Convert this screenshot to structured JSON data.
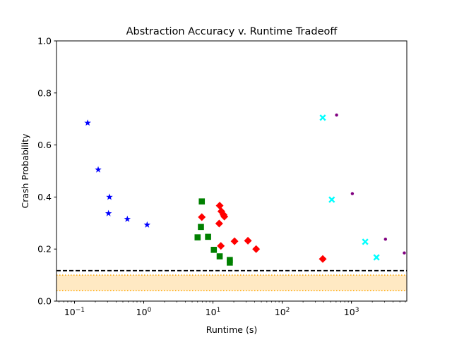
{
  "chart_data": {
    "type": "scatter",
    "title": "Abstraction Accuracy v. Runtime Tradeoff",
    "xlabel": "Runtime (s)",
    "ylabel": "Crash Probability",
    "xscale": "log",
    "xlim": [
      0.055,
      6300
    ],
    "ylim": [
      0.0,
      1.0
    ],
    "grid": false,
    "y_ticks": [
      {
        "value": 0.0,
        "label": "0.0"
      },
      {
        "value": 0.2,
        "label": "0.2"
      },
      {
        "value": 0.4,
        "label": "0.4"
      },
      {
        "value": 0.6,
        "label": "0.6"
      },
      {
        "value": 0.8,
        "label": "0.8"
      },
      {
        "value": 1.0,
        "label": "1.0"
      }
    ],
    "x_ticks": [
      {
        "value": 0.1,
        "base": "10",
        "exp": "−1"
      },
      {
        "value": 1,
        "base": "10",
        "exp": "0"
      },
      {
        "value": 10,
        "base": "10",
        "exp": "1"
      },
      {
        "value": 100,
        "base": "10",
        "exp": "2"
      },
      {
        "value": 1000,
        "base": "10",
        "exp": "3"
      }
    ],
    "reference_lines": [
      {
        "name": "baseline-dashed-line",
        "y": 0.117,
        "style": "dashed",
        "color": "#000000"
      }
    ],
    "band": {
      "y0": 0.04,
      "y1": 0.1,
      "fill": "#ffe9c3",
      "edge_color": "#ffa500",
      "edge_style": "dotted"
    },
    "series": [
      {
        "name": "blue-star",
        "marker": "star",
        "color": "#0000ff",
        "points": [
          {
            "x": 0.155,
            "y": 0.685
          },
          {
            "x": 0.22,
            "y": 0.505
          },
          {
            "x": 0.32,
            "y": 0.4
          },
          {
            "x": 0.31,
            "y": 0.337
          },
          {
            "x": 0.58,
            "y": 0.315
          },
          {
            "x": 1.12,
            "y": 0.293
          }
        ]
      },
      {
        "name": "green-square",
        "marker": "square",
        "color": "#008000",
        "points": [
          {
            "x": 6.9,
            "y": 0.383
          },
          {
            "x": 6.7,
            "y": 0.285
          },
          {
            "x": 6.0,
            "y": 0.245
          },
          {
            "x": 8.5,
            "y": 0.247
          },
          {
            "x": 10.3,
            "y": 0.197
          },
          {
            "x": 12.5,
            "y": 0.172
          },
          {
            "x": 17.5,
            "y": 0.158
          },
          {
            "x": 17.5,
            "y": 0.148
          }
        ]
      },
      {
        "name": "red-diamond",
        "marker": "diamond",
        "color": "#ff0000",
        "points": [
          {
            "x": 6.9,
            "y": 0.323
          },
          {
            "x": 12.5,
            "y": 0.367
          },
          {
            "x": 13.2,
            "y": 0.345
          },
          {
            "x": 14.2,
            "y": 0.332
          },
          {
            "x": 14.6,
            "y": 0.325
          },
          {
            "x": 12.3,
            "y": 0.298
          },
          {
            "x": 13.0,
            "y": 0.212
          },
          {
            "x": 20.5,
            "y": 0.23
          },
          {
            "x": 32.0,
            "y": 0.232
          },
          {
            "x": 42.0,
            "y": 0.2
          },
          {
            "x": 385.0,
            "y": 0.162
          }
        ]
      },
      {
        "name": "cyan-x",
        "marker": "x",
        "color": "#00ffff",
        "points": [
          {
            "x": 385.0,
            "y": 0.705
          },
          {
            "x": 520.0,
            "y": 0.39
          },
          {
            "x": 1580.0,
            "y": 0.228
          },
          {
            "x": 2300.0,
            "y": 0.168
          }
        ]
      },
      {
        "name": "purple-dot",
        "marker": "dot",
        "color": "#800080",
        "points": [
          {
            "x": 610.0,
            "y": 0.715
          },
          {
            "x": 1030.0,
            "y": 0.413
          },
          {
            "x": 3100.0,
            "y": 0.238
          },
          {
            "x": 5800.0,
            "y": 0.185
          }
        ]
      }
    ]
  }
}
